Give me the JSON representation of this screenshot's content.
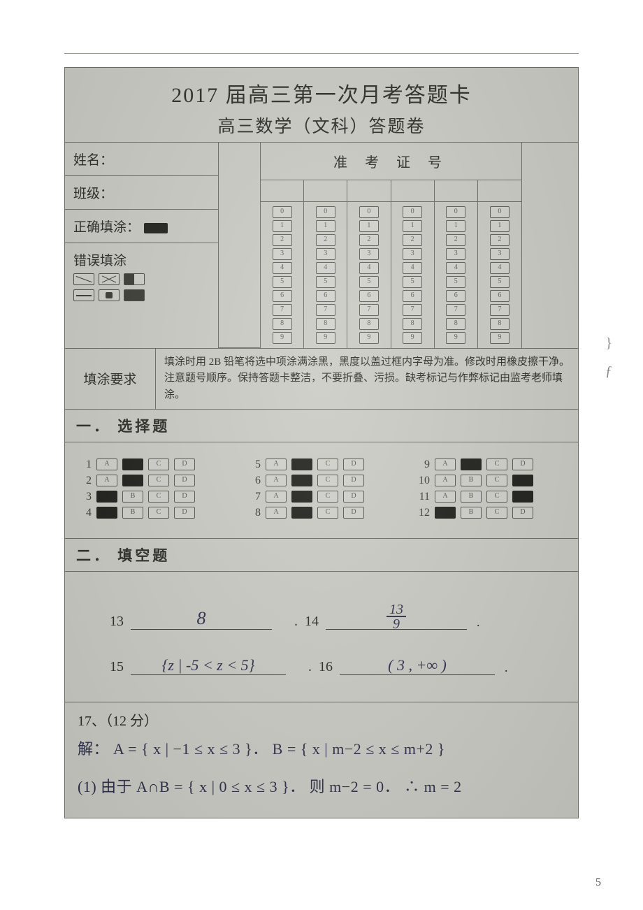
{
  "colors": {
    "page_bg": "#ffffff",
    "sheet_bg": "#c9cac3",
    "border": "#6a6a62",
    "text": "#2a2a26",
    "bubble_border": "#5d5d55",
    "filled": "#1c1c18",
    "handwriting": "#2d2d4a"
  },
  "typography": {
    "title_fontsize_pt": 22,
    "subtitle_fontsize_pt": 19,
    "body_fontsize_pt": 14,
    "hand_fontsize_pt": 18,
    "font_family_print": "SimSun / Songti",
    "font_family_hand": "cursive"
  },
  "titles": {
    "main": "2017 届高三第一次月考答题卡",
    "sub": "高三数学（文科）答题卷"
  },
  "header": {
    "name_label": "姓名：",
    "class_label": "班级：",
    "correct_fill_label": "正确填涂：",
    "wrong_fill_label": "错误填涂",
    "id_title": "准 考 证 号",
    "id_columns": 6,
    "id_digits": [
      "0",
      "1",
      "2",
      "3",
      "4",
      "5",
      "6",
      "7",
      "8",
      "9"
    ]
  },
  "requirements": {
    "label": "填涂要求",
    "text": "填涂时用 2B 铅笔将选中项涂满涂黑，黑度以盖过框内字母为准。修改时用橡皮擦干净。注意题号顺序。保持答题卡整洁，不要折叠、污损。缺考标记与作弊标记由监考老师填涂。"
  },
  "sections": {
    "mcq_title": "一．  选择题",
    "fill_title": "二．  填空题"
  },
  "mcq": {
    "options": [
      "A",
      "B",
      "C",
      "D"
    ],
    "answers": {
      "1": "B",
      "2": "B",
      "3": "A",
      "4": "A",
      "5": "B",
      "6": "B",
      "7": "B",
      "8": "B",
      "9": "B",
      "10": "D",
      "11": "D",
      "12": "A"
    },
    "layout": {
      "columns": 3,
      "groups": [
        [
          1,
          2,
          3,
          4
        ],
        [
          5,
          6,
          7,
          8
        ],
        [
          9,
          10,
          11,
          12
        ]
      ]
    }
  },
  "fill_in": {
    "items": [
      {
        "num": "13",
        "answer_text": "8"
      },
      {
        "num": "14",
        "answer_frac": {
          "num": "13",
          "den": "9"
        }
      },
      {
        "num": "15",
        "answer_text": "{z | -5 < z < 5}"
      },
      {
        "num": "16",
        "answer_text": "( 3 , +∞ )"
      }
    ],
    "line1_nums": [
      "13",
      "14"
    ],
    "line2_nums": [
      "15",
      "16"
    ]
  },
  "q17": {
    "heading": "17、（12 分）",
    "line1": "解： A = { x | −1 ≤ x ≤ 3 }．  B = { x | m−2 ≤ x ≤ m+2 }",
    "line2": "(1) 由于 A∩B = { x | 0 ≤ x ≤ 3 }． 则 m−2 = 0．  ∴ m = 2"
  },
  "page_number": "5"
}
